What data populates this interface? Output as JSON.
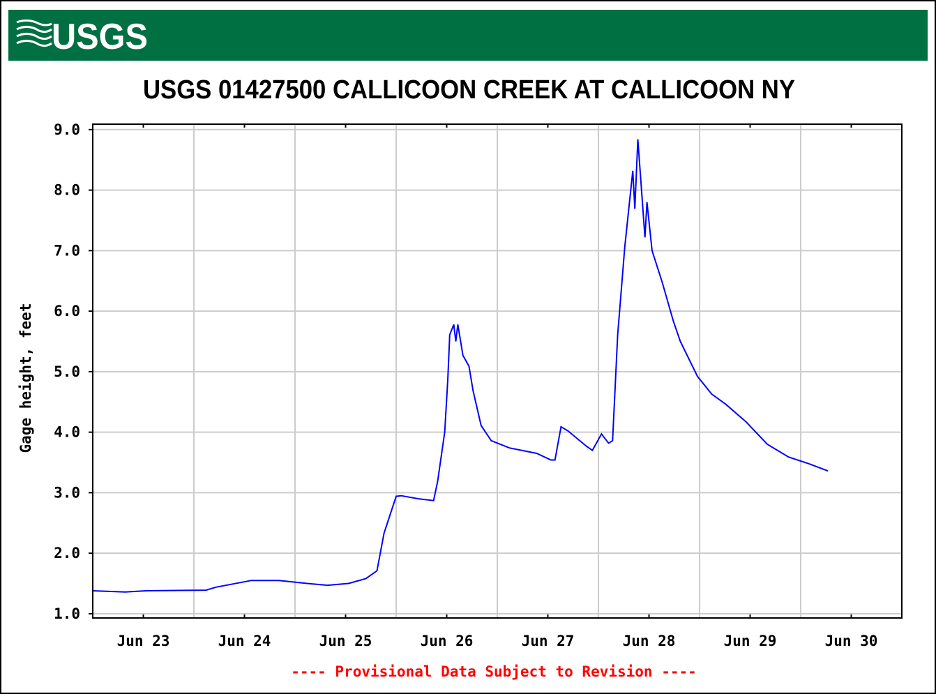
{
  "header": {
    "logo": "USGS"
  },
  "chart_data": {
    "type": "line",
    "title": "USGS 01427500 CALLICOON CREEK AT CALLICOON NY",
    "ylabel": "Gage height, feet",
    "footnote": "---- Provisional Data Subject to Revision ----",
    "x": [
      0,
      0.32,
      0.53,
      1.12,
      1.22,
      1.57,
      1.84,
      2.12,
      2.32,
      2.53,
      2.7,
      2.81,
      2.88,
      3.0,
      3.05,
      3.22,
      3.37,
      3.41,
      3.48,
      3.51,
      3.53,
      3.57,
      3.59,
      3.61,
      3.66,
      3.72,
      3.76,
      3.84,
      3.94,
      4.12,
      4.39,
      4.53,
      4.57,
      4.63,
      4.7,
      4.88,
      4.94,
      5.03,
      5.1,
      5.14,
      5.19,
      5.26,
      5.3,
      5.34,
      5.36,
      5.39,
      5.43,
      5.46,
      5.48,
      5.53,
      5.63,
      5.74,
      5.81,
      5.98,
      6.12,
      6.26,
      6.46,
      6.67,
      6.88,
      7.08,
      7.27
    ],
    "series": [
      {
        "name": "Gage height",
        "color": "#0000ff",
        "values": [
          1.38,
          1.36,
          1.38,
          1.39,
          1.44,
          1.55,
          1.55,
          1.5,
          1.47,
          1.5,
          1.58,
          1.71,
          2.33,
          2.94,
          2.95,
          2.9,
          2.87,
          3.19,
          4.0,
          4.86,
          5.61,
          5.78,
          5.5,
          5.78,
          5.27,
          5.09,
          4.69,
          4.11,
          3.86,
          3.74,
          3.65,
          3.54,
          3.54,
          4.09,
          4.02,
          3.77,
          3.7,
          3.97,
          3.82,
          3.86,
          5.61,
          7.05,
          7.69,
          8.32,
          7.69,
          8.84,
          7.92,
          7.22,
          7.8,
          7.0,
          6.48,
          5.84,
          5.5,
          4.92,
          4.63,
          4.46,
          4.17,
          3.8,
          3.59,
          3.48,
          3.36
        ]
      }
    ],
    "xlim": [
      0,
      8
    ],
    "xticks": [
      {
        "value": 0.5,
        "label": "Jun 23"
      },
      {
        "value": 1.5,
        "label": "Jun 24"
      },
      {
        "value": 2.5,
        "label": "Jun 25"
      },
      {
        "value": 3.5,
        "label": "Jun 26"
      },
      {
        "value": 4.5,
        "label": "Jun 27"
      },
      {
        "value": 5.5,
        "label": "Jun 28"
      },
      {
        "value": 6.5,
        "label": "Jun 29"
      },
      {
        "value": 7.5,
        "label": "Jun 30"
      }
    ],
    "ylim": [
      0.93,
      9.09
    ],
    "yticks": [
      {
        "value": 1,
        "label": "1.0"
      },
      {
        "value": 2,
        "label": "2.0"
      },
      {
        "value": 3,
        "label": "3.0"
      },
      {
        "value": 4,
        "label": "4.0"
      },
      {
        "value": 5,
        "label": "5.0"
      },
      {
        "value": 6,
        "label": "6.0"
      },
      {
        "value": 7,
        "label": "7.0"
      },
      {
        "value": 8,
        "label": "8.0"
      },
      {
        "value": 9,
        "label": "9.0"
      }
    ],
    "grid": true
  }
}
